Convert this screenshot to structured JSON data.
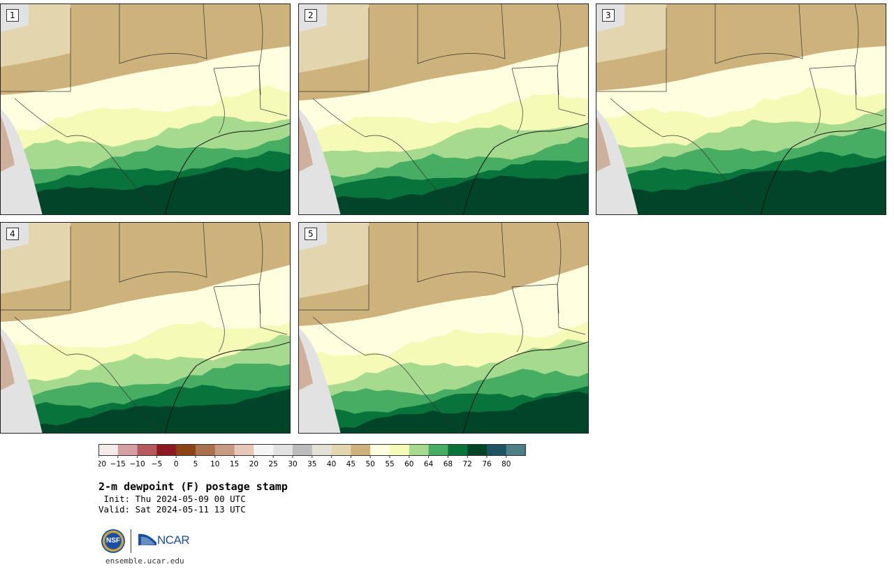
{
  "product": {
    "title": "2-m dewpoint (F) postage stamp",
    "init": " Init: Thu 2024-05-09 00 UTC",
    "valid": "Valid: Sat 2024-05-11 13 UTC",
    "site": "ensemble.ucar.edu"
  },
  "logos": {
    "nsf": "NSF",
    "ncar": "NCAR"
  },
  "members": [
    {
      "label": "1"
    },
    {
      "label": "2"
    },
    {
      "label": "3"
    },
    {
      "label": "4"
    },
    {
      "label": "5"
    }
  ],
  "colorbar": {
    "ticks": [
      "-20",
      "-15",
      "-10",
      "-5",
      "0",
      "5",
      "10",
      "15",
      "20",
      "25",
      "30",
      "35",
      "40",
      "45",
      "50",
      "55",
      "60",
      "64",
      "68",
      "72",
      "76",
      "80"
    ],
    "colors": [
      "#f3ece9",
      "#d5a0a4",
      "#b4595e",
      "#8b1a22",
      "#8a4414",
      "#a9714c",
      "#c79b80",
      "#e4c9b8",
      "#f5f5f5",
      "#e2e2e2",
      "#bcbcbc",
      "#e3e1d6",
      "#e3d5ad",
      "#cdb27b",
      "#ffffe0",
      "#f5fbb7",
      "#a6db8f",
      "#46ad62",
      "#08733a",
      "#00442a",
      "#1e5462",
      "#4d7f86"
    ]
  },
  "map_colors": {
    "dry": "#cdb27b",
    "tan_light": "#e3d5ad",
    "pale": "#ffffe0",
    "pale_yellow": "#f5fbb7",
    "light_green": "#a6db8f",
    "green": "#46ad62",
    "dark_green": "#08733a",
    "darkest_green": "#00442a",
    "gray": "#e2e2e2",
    "pink": "#c79b80"
  }
}
